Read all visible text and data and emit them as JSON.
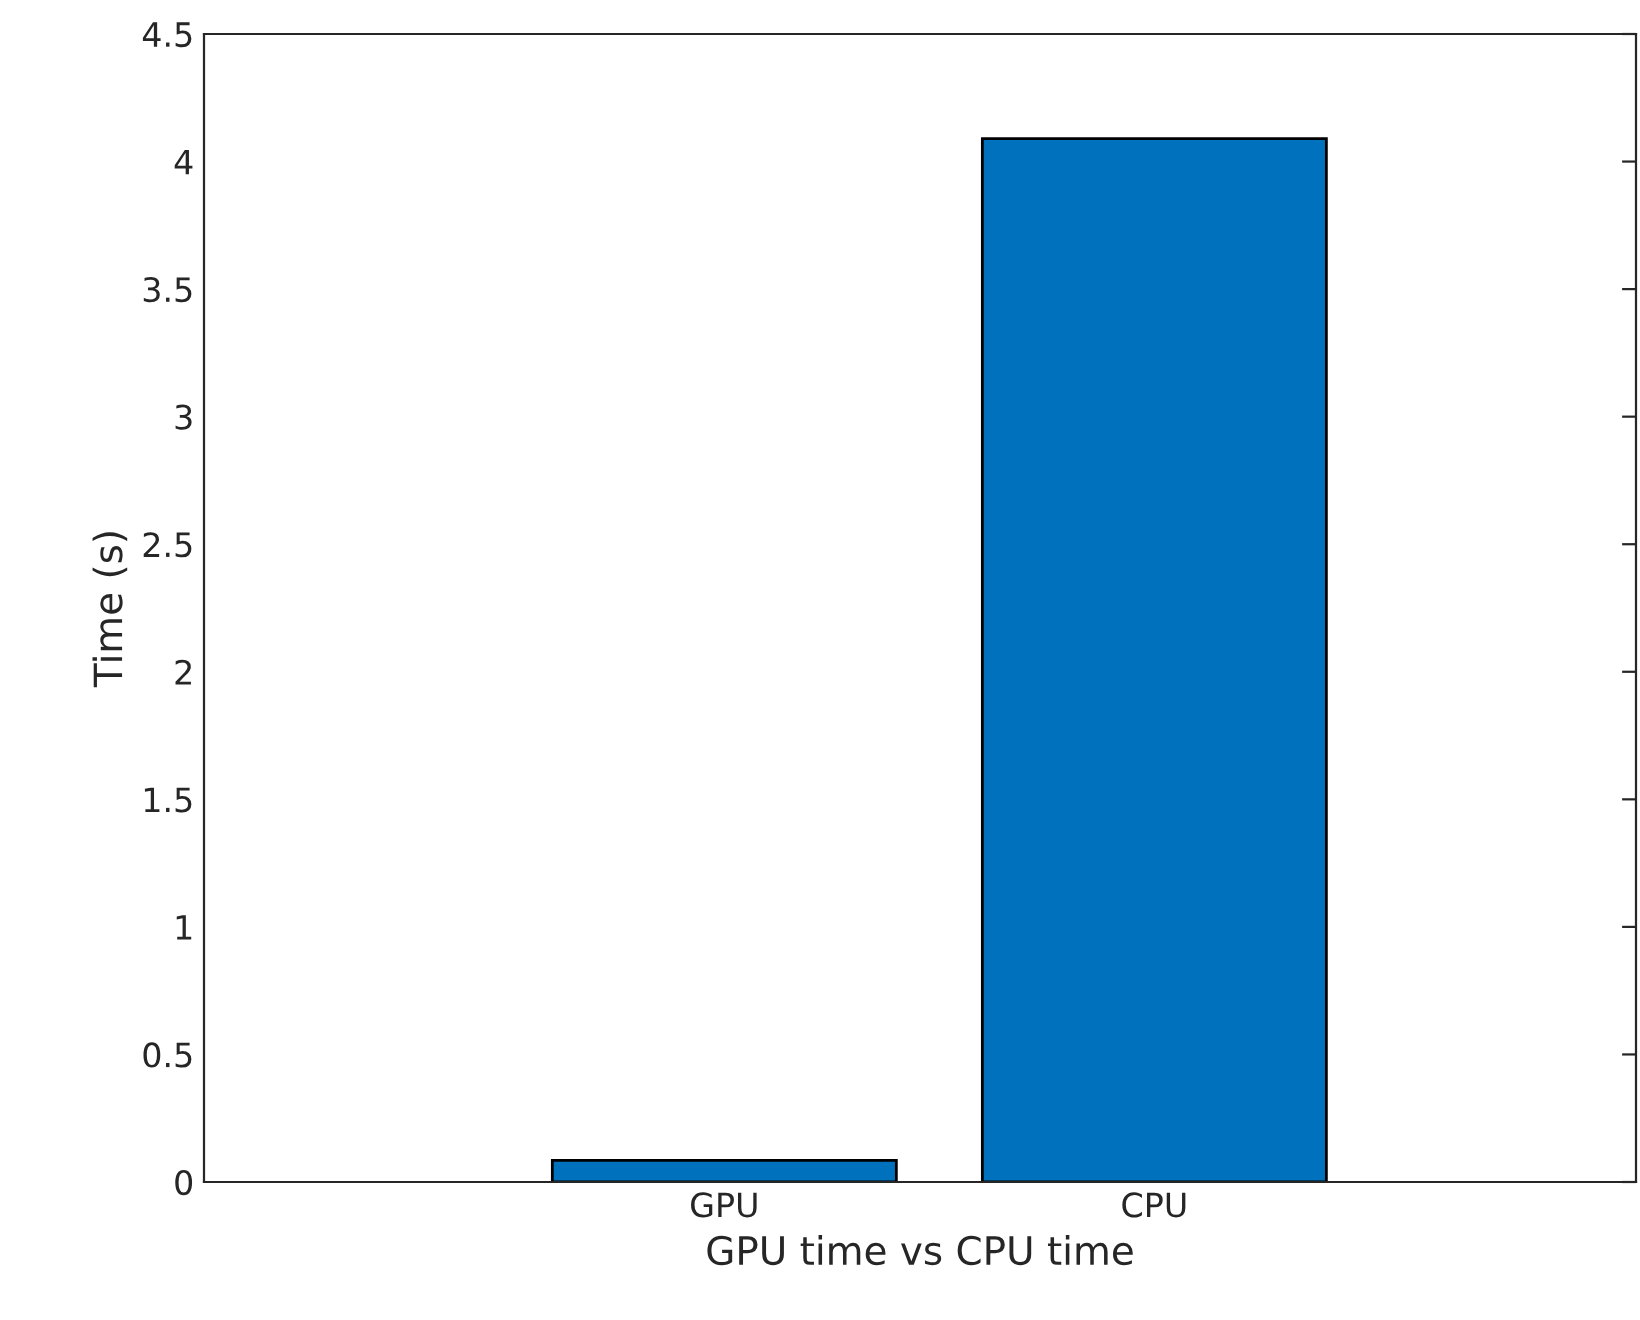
{
  "chart_data": {
    "type": "bar",
    "xlabel": "GPU time vs CPU time",
    "ylabel": "Time (s)",
    "categories": [
      "GPU",
      "CPU"
    ],
    "values": [
      0.085,
      4.09
    ],
    "color": "#0072bd",
    "ylim": [
      0,
      4.5
    ],
    "yticks": [
      0,
      0.5,
      1,
      1.5,
      2,
      2.5,
      3,
      3.5,
      4,
      4.5
    ],
    "grid": false,
    "legend": false
  }
}
